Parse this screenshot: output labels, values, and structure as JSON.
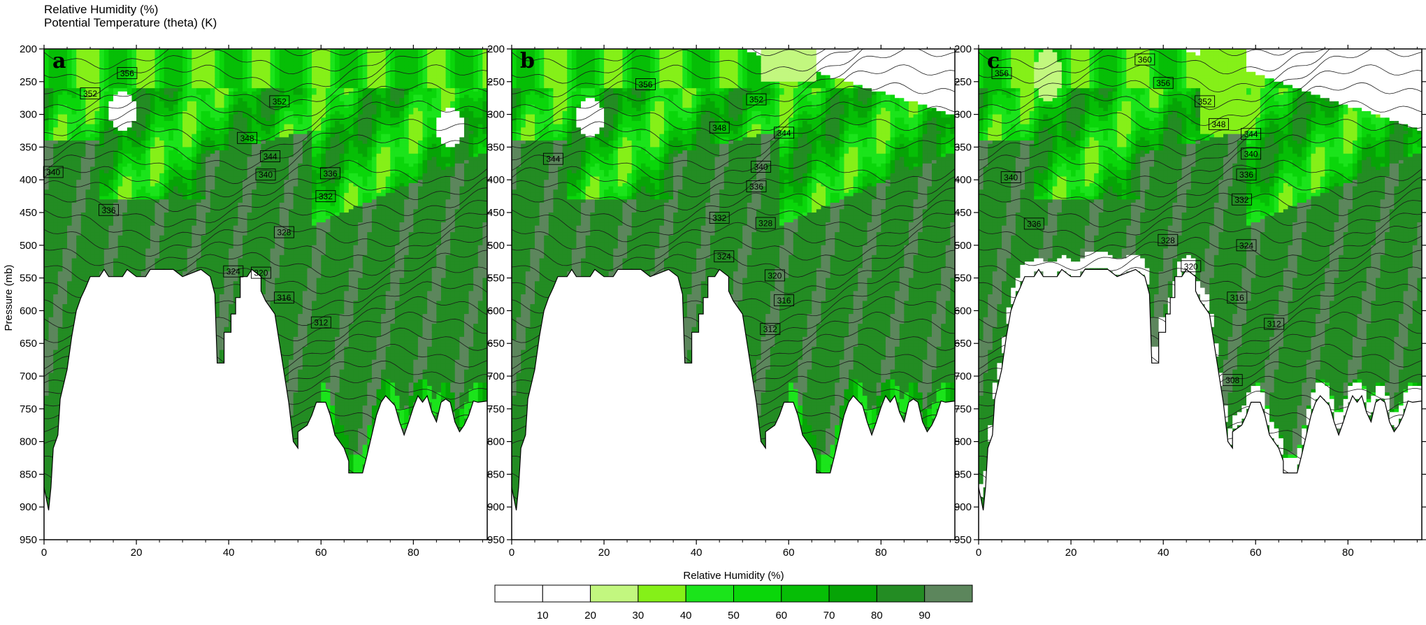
{
  "header": {
    "line1": "Relative Humidity (%)",
    "line2": "Potential Temperature (theta) (K)"
  },
  "y_axis_label": "Pressure (mb)",
  "colorbar_title": "Relative Humidity (%)",
  "chart_data": [
    {
      "type": "heatmap",
      "panel": "a",
      "x_ticks": [
        0,
        20,
        40,
        60,
        80
      ],
      "xlim": [
        0,
        96
      ],
      "y_ticks": [
        200,
        250,
        300,
        350,
        400,
        450,
        500,
        550,
        600,
        650,
        700,
        750,
        800,
        850,
        900,
        950
      ],
      "ylim": [
        950,
        200
      ],
      "contour_variable": "theta (K)",
      "contour_labels": [
        {
          "text": "356",
          "x": 18,
          "p": 237
        },
        {
          "text": "352",
          "x": 10,
          "p": 268
        },
        {
          "text": "352",
          "x": 51,
          "p": 280
        },
        {
          "text": "348",
          "x": 44,
          "p": 336
        },
        {
          "text": "344",
          "x": 49,
          "p": 364
        },
        {
          "text": "340",
          "x": 2,
          "p": 388
        },
        {
          "text": "340",
          "x": 48,
          "p": 392
        },
        {
          "text": "336",
          "x": 62,
          "p": 390
        },
        {
          "text": "332",
          "x": 61,
          "p": 425
        },
        {
          "text": "336",
          "x": 14,
          "p": 446
        },
        {
          "text": "328",
          "x": 52,
          "p": 480
        },
        {
          "text": "324",
          "x": 41,
          "p": 540
        },
        {
          "text": "320",
          "x": 47,
          "p": 542
        },
        {
          "text": "316",
          "x": 52,
          "p": 580
        },
        {
          "text": "312",
          "x": 60,
          "p": 618
        }
      ]
    },
    {
      "type": "heatmap",
      "panel": "b",
      "x_ticks": [
        0,
        20,
        40,
        60,
        80
      ],
      "xlim": [
        0,
        96
      ],
      "y_ticks": [
        200,
        250,
        300,
        350,
        400,
        450,
        500,
        550,
        600,
        650,
        700,
        750,
        800,
        850,
        900,
        950
      ],
      "ylim": [
        950,
        200
      ],
      "contour_variable": "theta (K)",
      "contour_labels": [
        {
          "text": "356",
          "x": 29,
          "p": 254
        },
        {
          "text": "352",
          "x": 53,
          "p": 277
        },
        {
          "text": "348",
          "x": 45,
          "p": 320
        },
        {
          "text": "344",
          "x": 59,
          "p": 328
        },
        {
          "text": "344",
          "x": 9,
          "p": 368
        },
        {
          "text": "340",
          "x": 54,
          "p": 380
        },
        {
          "text": "336",
          "x": 53,
          "p": 410
        },
        {
          "text": "332",
          "x": 45,
          "p": 458
        },
        {
          "text": "328",
          "x": 55,
          "p": 466
        },
        {
          "text": "324",
          "x": 46,
          "p": 517
        },
        {
          "text": "320",
          "x": 57,
          "p": 546
        },
        {
          "text": "316",
          "x": 59,
          "p": 584
        },
        {
          "text": "312",
          "x": 56,
          "p": 628
        }
      ]
    },
    {
      "type": "heatmap",
      "panel": "c",
      "x_ticks": [
        0,
        20,
        40,
        60,
        80
      ],
      "xlim": [
        0,
        96
      ],
      "y_ticks": [
        200,
        250,
        300,
        350,
        400,
        450,
        500,
        550,
        600,
        650,
        700,
        750,
        800,
        850,
        900,
        950
      ],
      "ylim": [
        950,
        200
      ],
      "contour_variable": "theta (K)",
      "contour_labels": [
        {
          "text": "360",
          "x": 36,
          "p": 216
        },
        {
          "text": "356",
          "x": 5,
          "p": 237
        },
        {
          "text": "356",
          "x": 40,
          "p": 252
        },
        {
          "text": "352",
          "x": 49,
          "p": 280
        },
        {
          "text": "348",
          "x": 52,
          "p": 315
        },
        {
          "text": "344",
          "x": 59,
          "p": 330
        },
        {
          "text": "340",
          "x": 59,
          "p": 360
        },
        {
          "text": "336",
          "x": 58,
          "p": 392
        },
        {
          "text": "340",
          "x": 7,
          "p": 396
        },
        {
          "text": "332",
          "x": 57,
          "p": 430
        },
        {
          "text": "336",
          "x": 12,
          "p": 467
        },
        {
          "text": "328",
          "x": 41,
          "p": 492
        },
        {
          "text": "324",
          "x": 58,
          "p": 500
        },
        {
          "text": "320",
          "x": 46,
          "p": 532
        },
        {
          "text": "316",
          "x": 56,
          "p": 580
        },
        {
          "text": "312",
          "x": 64,
          "p": 620
        },
        {
          "text": "308",
          "x": 55,
          "p": 706
        }
      ]
    }
  ],
  "colorbar": {
    "labels": [
      "10",
      "20",
      "30",
      "40",
      "50",
      "60",
      "70",
      "80",
      "90"
    ],
    "colors": [
      "#ffffff",
      "#ffffff",
      "#c2f77f",
      "#85f018",
      "#1be41b",
      "#0ad60a",
      "#06be06",
      "#06a406",
      "#238c23",
      "#5c865c"
    ]
  }
}
